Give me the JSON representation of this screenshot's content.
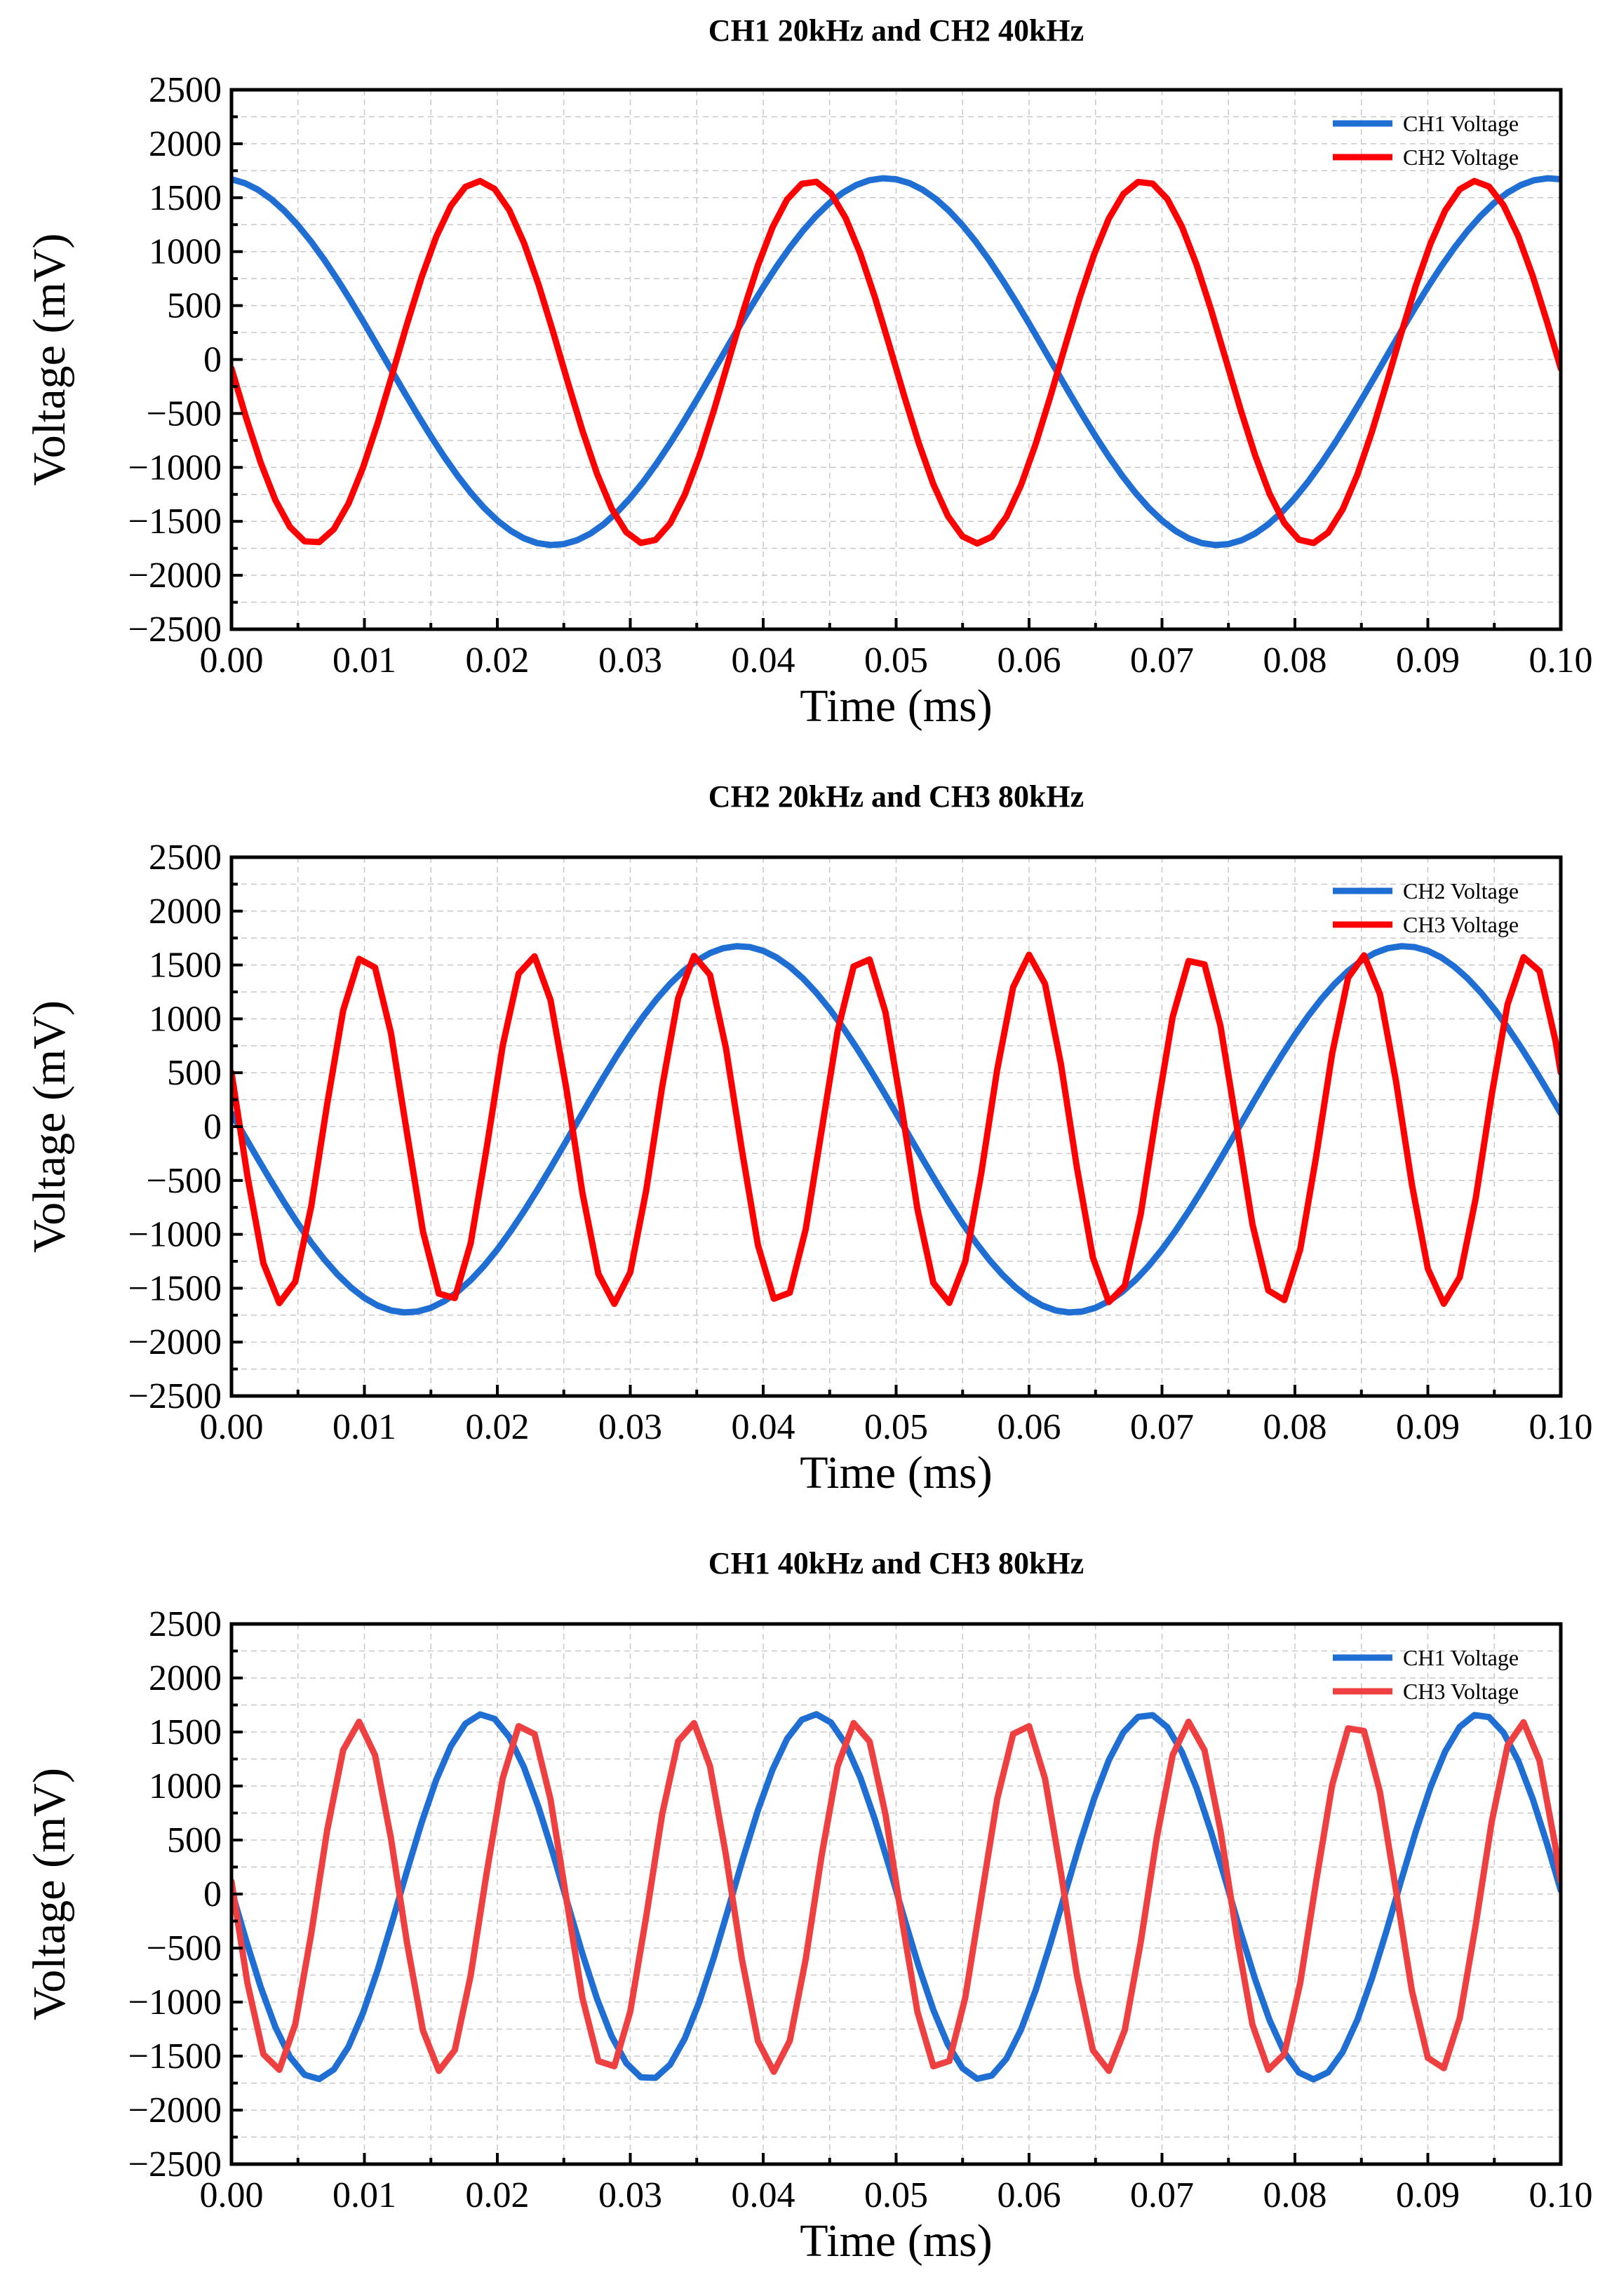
{
  "figure": {
    "background": "#ffffff",
    "grid_color": "#c8c8c8"
  },
  "chart_data": [
    {
      "type": "line",
      "title": "CH1 20kHz and CH2 40kHz",
      "xlabel": "Time (ms)",
      "ylabel": "Voltage (mV)",
      "xlim": [
        0,
        0.1
      ],
      "ylim": [
        -2500,
        2500
      ],
      "xticks": [
        "0.00",
        "0.01",
        "0.02",
        "0.03",
        "0.04",
        "0.05",
        "0.06",
        "0.07",
        "0.08",
        "0.09",
        "0.10"
      ],
      "yticks": [
        "2500",
        "2000",
        "1500",
        "1000",
        "500",
        "0",
        "−500",
        "−1000",
        "−1500",
        "−2000",
        "−2500"
      ],
      "grid": true,
      "legend": "top-right",
      "series": [
        {
          "name": "CH1 Voltage",
          "color": "#1f6ed4",
          "frequency_khz": 20,
          "amplitude": 1700,
          "offset": -20,
          "phase_deg": 96,
          "sample_step": 0.001
        },
        {
          "name": "CH2 Voltage",
          "color": "#ff0000",
          "frequency_khz": 40,
          "amplitude": 1680,
          "offset": -25,
          "phase_deg": 182,
          "sample_step": 0.0011
        }
      ]
    },
    {
      "type": "line",
      "title": "CH2 20kHz and CH3 80kHz",
      "xlabel": "Time (ms)",
      "ylabel": "Voltage (mV)",
      "xlim": [
        0,
        0.1
      ],
      "ylim": [
        -2500,
        2500
      ],
      "xticks": [
        "0.00",
        "0.01",
        "0.02",
        "0.03",
        "0.04",
        "0.05",
        "0.06",
        "0.07",
        "0.08",
        "0.09",
        "0.10"
      ],
      "yticks": [
        "2500",
        "2000",
        "1500",
        "1000",
        "500",
        "0",
        "−500",
        "−1000",
        "−1500",
        "−2000",
        "−2500"
      ],
      "grid": true,
      "legend": "top-right",
      "series": [
        {
          "name": "CH2 Voltage",
          "color": "#1f6ed4",
          "frequency_khz": 20,
          "amplitude": 1700,
          "offset": -25,
          "phase_deg": 175,
          "sample_step": 0.001
        },
        {
          "name": "CH3 Voltage",
          "color": "#ff0000",
          "frequency_khz": 80,
          "amplitude": 1620,
          "offset": -25,
          "phase_deg": 161,
          "sample_step": 0.0012
        }
      ]
    },
    {
      "type": "line",
      "title": "CH1 40kHz and CH3 80kHz",
      "xlabel": "Time (ms)",
      "ylabel": "Voltage (mV)",
      "xlim": [
        0,
        0.1
      ],
      "ylim": [
        -2500,
        2500
      ],
      "xticks": [
        "0.00",
        "0.01",
        "0.02",
        "0.03",
        "0.04",
        "0.05",
        "0.06",
        "0.07",
        "0.08",
        "0.09",
        "0.10"
      ],
      "yticks": [
        "2500",
        "2000",
        "1500",
        "1000",
        "500",
        "0",
        "−500",
        "−1000",
        "−1500",
        "−2000",
        "−2500"
      ],
      "grid": true,
      "legend": "top-right",
      "series": [
        {
          "name": "CH1 Voltage",
          "color": "#1f6ed4",
          "frequency_khz": 40,
          "amplitude": 1690,
          "offset": -25,
          "phase_deg": 178,
          "sample_step": 0.0011
        },
        {
          "name": "CH3 Voltage",
          "color": "#ee4040",
          "frequency_khz": 80,
          "amplitude": 1620,
          "offset": -25,
          "phase_deg": 175,
          "sample_step": 0.0012
        }
      ]
    }
  ]
}
